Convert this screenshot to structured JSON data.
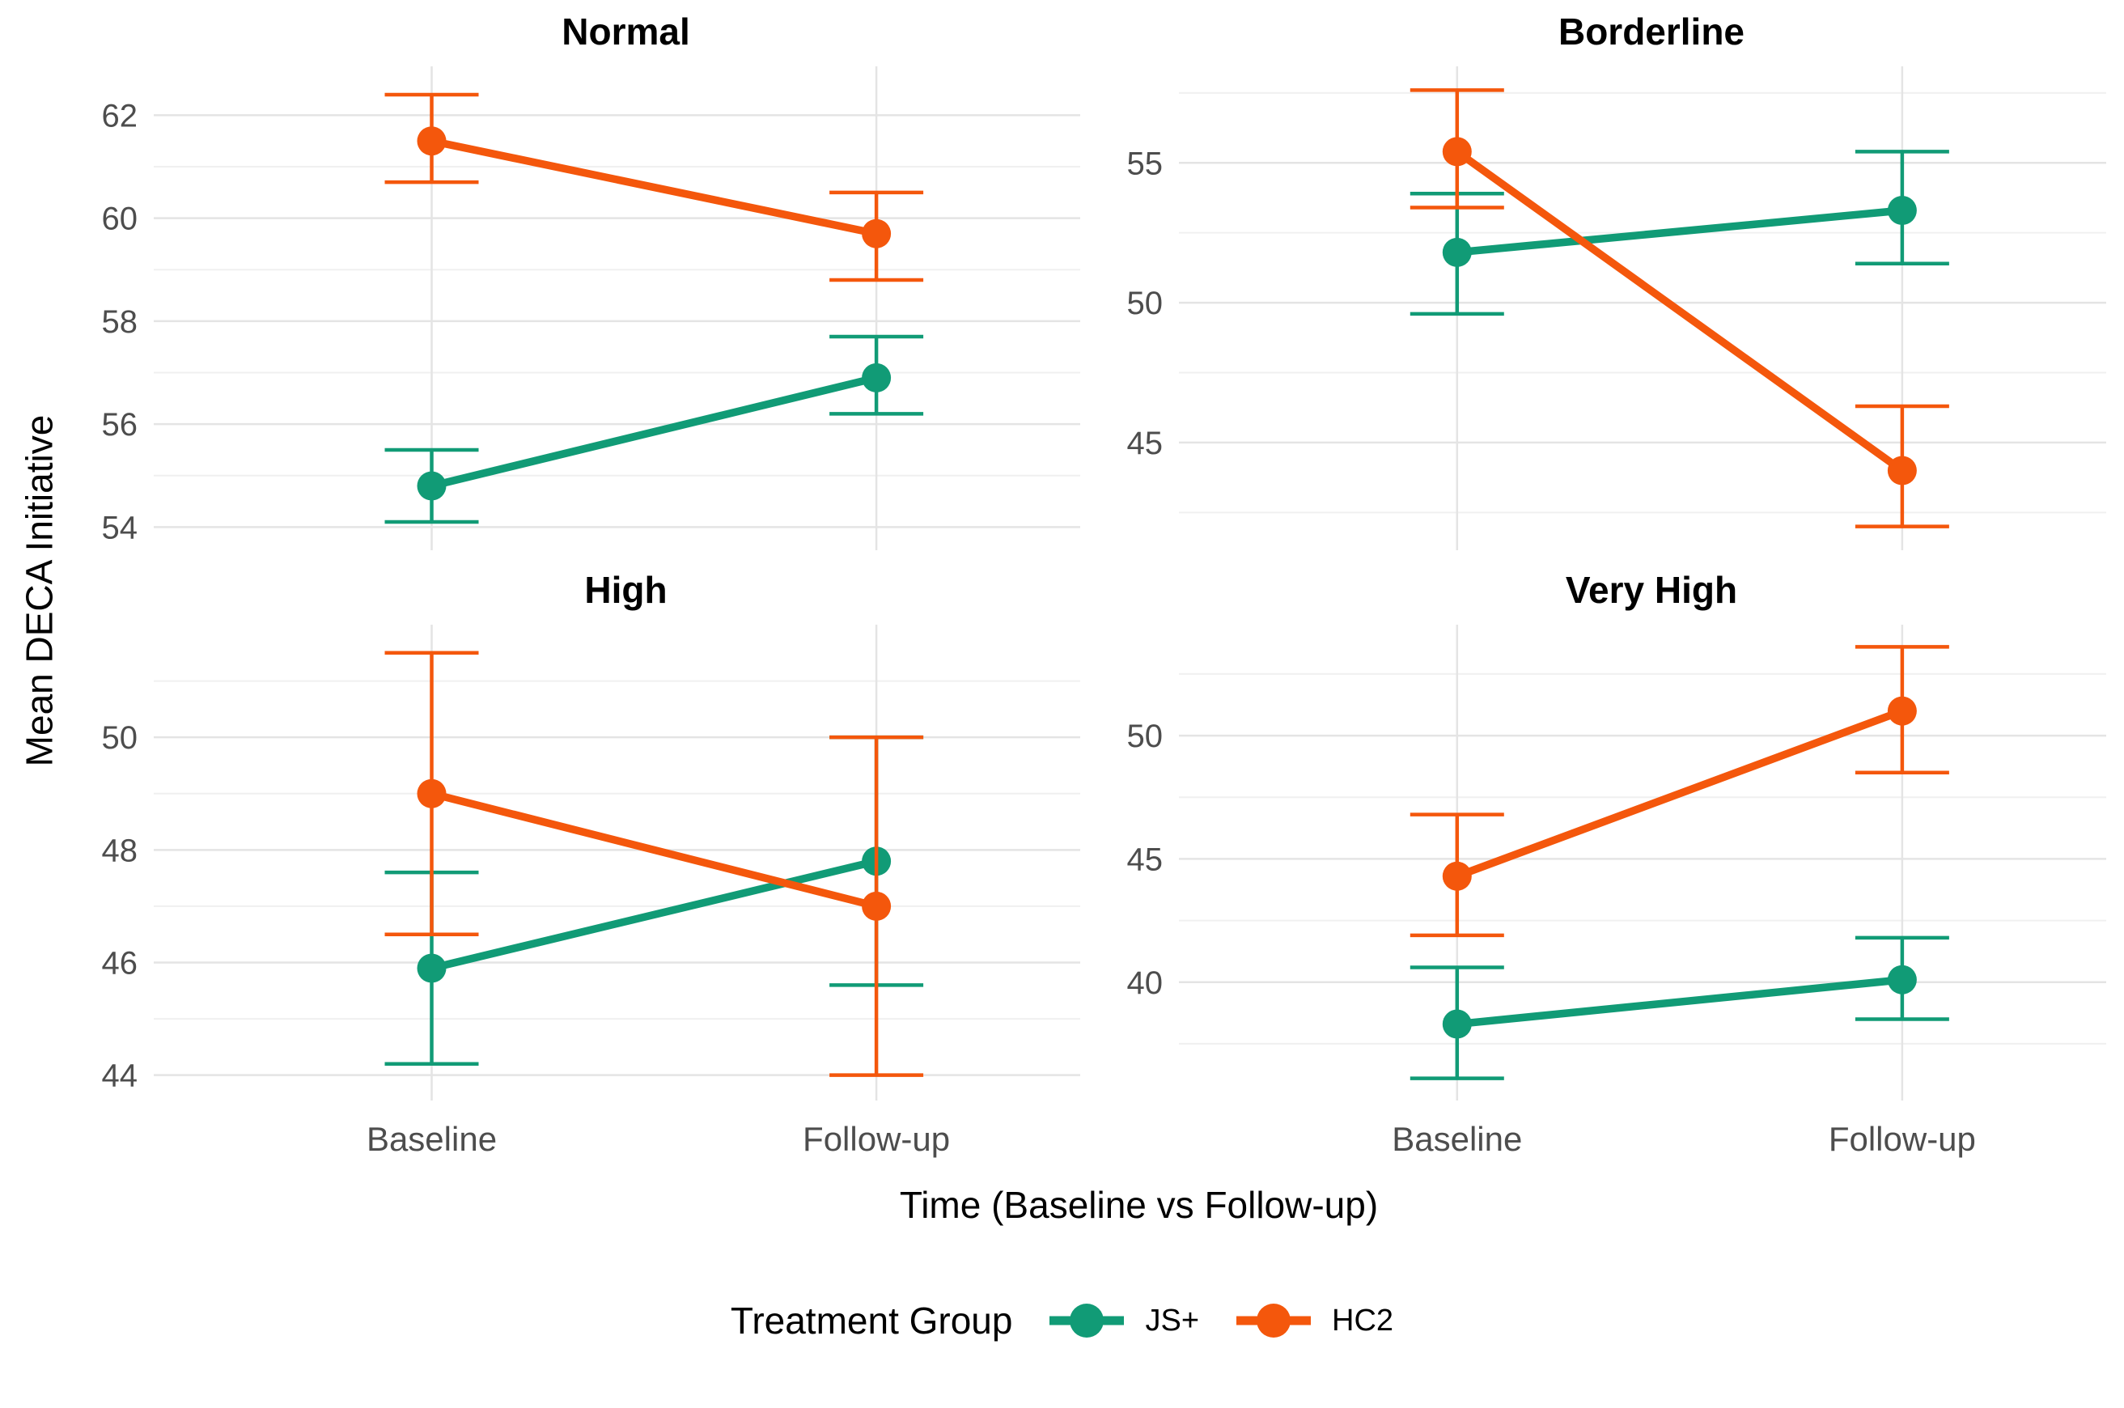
{
  "figure": {
    "y_axis_title": "Mean DECA Initiative",
    "x_axis_title": "Time (Baseline vs Follow-up)",
    "x_categories": [
      "Baseline",
      "Follow-up"
    ],
    "legend": {
      "title": "Treatment Group",
      "entries": [
        {
          "label": "JS+",
          "color": "#119B76"
        },
        {
          "label": "HC2",
          "color": "#F4570C"
        }
      ]
    },
    "style": {
      "major_gridline_color": "#E4E4E4",
      "minor_gridline_color": "#F0F0F0",
      "tick_label_color": "#4D4D4D",
      "background": "#FFFFFF"
    }
  },
  "chart_data": [
    {
      "type": "line",
      "title": "Normal",
      "x": [
        "Baseline",
        "Follow-up"
      ],
      "xlabel": "Time (Baseline vs Follow-up)",
      "ylabel": "Mean DECA Initiative",
      "ylim": [
        53.55,
        62.95
      ],
      "yticks": [
        54,
        56,
        58,
        60,
        62
      ],
      "yticks_minor": [
        55,
        57,
        59,
        61
      ],
      "grid": true,
      "series": [
        {
          "name": "JS+",
          "values": [
            54.8,
            56.9
          ],
          "ci_low": [
            54.1,
            56.2
          ],
          "ci_high": [
            55.5,
            57.7
          ]
        },
        {
          "name": "HC2",
          "values": [
            61.5,
            59.7
          ],
          "ci_low": [
            60.7,
            58.8
          ],
          "ci_high": [
            62.4,
            60.5
          ]
        }
      ]
    },
    {
      "type": "line",
      "title": "Borderline",
      "x": [
        "Baseline",
        "Follow-up"
      ],
      "xlabel": "Time (Baseline vs Follow-up)",
      "ylabel": "Mean DECA Initiative",
      "ylim": [
        41.15,
        58.45
      ],
      "yticks": [
        45,
        50,
        55
      ],
      "yticks_minor": [
        42.5,
        47.5,
        52.5,
        57.5
      ],
      "grid": true,
      "series": [
        {
          "name": "JS+",
          "values": [
            51.8,
            53.3
          ],
          "ci_low": [
            49.6,
            51.4
          ],
          "ci_high": [
            53.9,
            55.4
          ]
        },
        {
          "name": "HC2",
          "values": [
            55.4,
            44.0
          ],
          "ci_low": [
            53.4,
            42.0
          ],
          "ci_high": [
            57.6,
            46.3
          ]
        }
      ]
    },
    {
      "type": "line",
      "title": "High",
      "x": [
        "Baseline",
        "Follow-up"
      ],
      "xlabel": "Time (Baseline vs Follow-up)",
      "ylabel": "Mean DECA Initiative",
      "ylim": [
        43.55,
        52.0
      ],
      "yticks": [
        44,
        46,
        48,
        50
      ],
      "yticks_minor": [
        45,
        47,
        49,
        51
      ],
      "grid": true,
      "series": [
        {
          "name": "JS+",
          "values": [
            45.9,
            47.8
          ],
          "ci_low": [
            44.2,
            45.6
          ],
          "ci_high": [
            47.6,
            50.0
          ]
        },
        {
          "name": "HC2",
          "values": [
            49.0,
            47.0
          ],
          "ci_low": [
            46.5,
            44.0
          ],
          "ci_high": [
            51.5,
            50.0
          ]
        }
      ]
    },
    {
      "type": "line",
      "title": "Very High",
      "x": [
        "Baseline",
        "Follow-up"
      ],
      "xlabel": "Time (Baseline vs Follow-up)",
      "ylabel": "Mean DECA Initiative",
      "ylim": [
        35.2,
        54.5
      ],
      "yticks": [
        40,
        45,
        50
      ],
      "yticks_minor": [
        37.5,
        42.5,
        47.5,
        52.5
      ],
      "grid": true,
      "series": [
        {
          "name": "JS+",
          "values": [
            38.3,
            40.1
          ],
          "ci_low": [
            36.1,
            38.5
          ],
          "ci_high": [
            40.6,
            41.8
          ]
        },
        {
          "name": "HC2",
          "values": [
            44.3,
            51.0
          ],
          "ci_low": [
            41.9,
            48.5
          ],
          "ci_high": [
            46.8,
            53.6
          ]
        }
      ]
    }
  ]
}
